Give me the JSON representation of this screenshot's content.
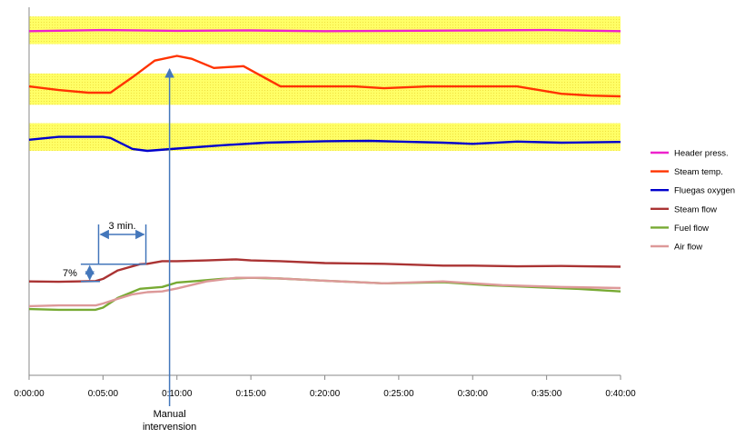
{
  "chart_data": {
    "type": "line",
    "title": "",
    "xlabel": "",
    "ylabel": "",
    "x_unit": "minutes",
    "xlim": [
      0,
      40
    ],
    "x_ticks": [
      {
        "value": 0,
        "label": "0:00:00"
      },
      {
        "value": 5,
        "label": "0:05:00"
      },
      {
        "value": 10,
        "label": "0:10:00"
      },
      {
        "value": 15,
        "label": "0:15:00"
      },
      {
        "value": 20,
        "label": "0:20:00"
      },
      {
        "value": 25,
        "label": "0:25:00"
      },
      {
        "value": 30,
        "label": "0:30:00"
      },
      {
        "value": 35,
        "label": "0:35:00"
      },
      {
        "value": 40,
        "label": "0:40:00"
      }
    ],
    "y_axis_labels": "none (relative scale, higher = larger value)",
    "grid": false,
    "legend_position": "right",
    "bands": [
      {
        "series": "Header press.",
        "range": [
          0.9,
          0.975
        ],
        "color": "#ffff66"
      },
      {
        "series": "Steam temp.",
        "range": [
          0.735,
          0.82
        ],
        "color": "#ffff66"
      },
      {
        "series": "Fluegas oxygen",
        "range": [
          0.61,
          0.685
        ],
        "color": "#ffff66"
      }
    ],
    "series": [
      {
        "name": "Header press.",
        "color": "#ee22cc",
        "x": [
          0,
          5,
          10,
          15,
          20,
          25,
          30,
          35,
          40
        ],
        "y": [
          0.935,
          0.938,
          0.936,
          0.937,
          0.935,
          0.936,
          0.937,
          0.938,
          0.935
        ]
      },
      {
        "name": "Steam temp.",
        "color": "#ff3300",
        "x": [
          0,
          2,
          4,
          5.5,
          7,
          8.5,
          10,
          11,
          12.5,
          14.5,
          17,
          22,
          24,
          27,
          30,
          33,
          36,
          38,
          40
        ],
        "y": [
          0.785,
          0.775,
          0.768,
          0.768,
          0.81,
          0.855,
          0.868,
          0.86,
          0.835,
          0.84,
          0.785,
          0.785,
          0.78,
          0.785,
          0.785,
          0.785,
          0.765,
          0.76,
          0.758
        ]
      },
      {
        "name": "Fluegas oxygen",
        "color": "#0000cc",
        "x": [
          0,
          2,
          5,
          5.5,
          7,
          8,
          10,
          13,
          16,
          20,
          23,
          25,
          28,
          30,
          33,
          36,
          40
        ],
        "y": [
          0.64,
          0.648,
          0.648,
          0.645,
          0.615,
          0.61,
          0.616,
          0.625,
          0.632,
          0.636,
          0.637,
          0.635,
          0.632,
          0.629,
          0.635,
          0.632,
          0.634
        ]
      },
      {
        "name": "Steam flow",
        "color": "#aa3333",
        "x": [
          0,
          2,
          4.5,
          5,
          6,
          7.5,
          8,
          9,
          10,
          12,
          14,
          15,
          17,
          20,
          24,
          28,
          30,
          33,
          36,
          40
        ],
        "y": [
          0.255,
          0.254,
          0.256,
          0.262,
          0.285,
          0.302,
          0.303,
          0.31,
          0.31,
          0.312,
          0.315,
          0.312,
          0.31,
          0.305,
          0.303,
          0.298,
          0.298,
          0.296,
          0.297,
          0.295
        ]
      },
      {
        "name": "Fuel flow",
        "color": "#77aa33",
        "x": [
          0,
          2,
          4.5,
          5,
          6,
          7.5,
          9,
          10,
          11,
          13,
          15,
          17,
          20,
          24,
          28,
          31,
          34,
          37,
          40
        ],
        "y": [
          0.18,
          0.178,
          0.178,
          0.184,
          0.21,
          0.235,
          0.24,
          0.252,
          0.255,
          0.262,
          0.265,
          0.263,
          0.257,
          0.25,
          0.253,
          0.245,
          0.24,
          0.235,
          0.228
        ]
      },
      {
        "name": "Air flow",
        "color": "#dd9999",
        "x": [
          0,
          2,
          4.5,
          5,
          6,
          7,
          8,
          9,
          10,
          12,
          14,
          16,
          20,
          24,
          28,
          32,
          36,
          40
        ],
        "y": [
          0.188,
          0.19,
          0.19,
          0.195,
          0.208,
          0.22,
          0.226,
          0.228,
          0.236,
          0.255,
          0.265,
          0.265,
          0.257,
          0.25,
          0.255,
          0.245,
          0.24,
          0.237
        ]
      }
    ],
    "annotations": {
      "step_label": "3 min.",
      "step_x_range": [
        4.7,
        7.9
      ],
      "percent_label": "7%",
      "percent_y_range": [
        0.255,
        0.302
      ],
      "arrow_x": 9.5,
      "arrow_text": [
        "Manual",
        "intervension"
      ]
    }
  }
}
